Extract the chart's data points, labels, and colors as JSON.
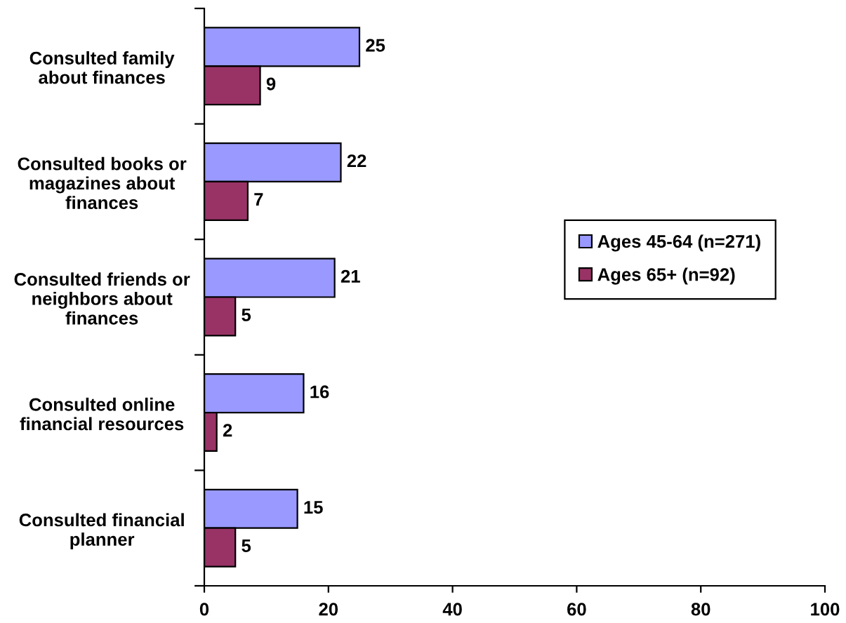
{
  "chart_data": {
    "type": "bar",
    "orientation": "horizontal",
    "categories": [
      "Consulted family\nabout finances",
      "Consulted books or\nmagazines about\nfinances",
      "Consulted friends or\nneighbors about\nfinances",
      "Consulted online\nfinancial resources",
      "Consulted financial\nplanner"
    ],
    "series": [
      {
        "name": "Ages 45-64 (n=271)",
        "color": "#9999ff",
        "values": [
          25,
          22,
          21,
          16,
          15
        ]
      },
      {
        "name": "Ages 65+ (n=92)",
        "color": "#993366",
        "values": [
          9,
          7,
          5,
          2,
          5
        ]
      }
    ],
    "xlim": [
      0,
      100
    ],
    "xticks": [
      0,
      20,
      40,
      60,
      80,
      100
    ],
    "data_labels": true,
    "legend": "right",
    "grid": false
  }
}
